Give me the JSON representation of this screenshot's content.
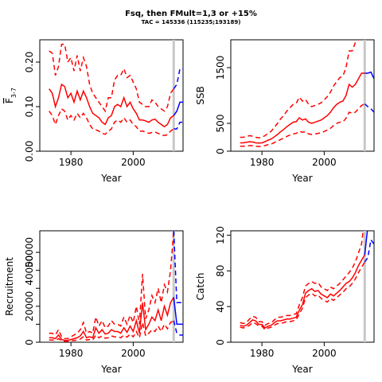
{
  "figure": {
    "title": "Fsq, then FMult=1,3 or +15%",
    "subtitle": "TAC = 145336 (115235;193189)"
  },
  "colors": {
    "historic": "#ff0000",
    "forecast": "#0000ff",
    "vline": "#c8c8c8"
  },
  "chart_data": [
    {
      "id": "fbar",
      "type": "line",
      "xlabel": "Year",
      "ylabel_main": "F",
      "ylabel_sub": "3-7",
      "xlim": [
        1970,
        2016
      ],
      "ylim": [
        0,
        0.25
      ],
      "xticks": [
        1980,
        2000
      ],
      "yticks": [
        0.0,
        0.1,
        0.2
      ],
      "ytick_labels": [
        "0.00",
        "0.10",
        "0.20"
      ],
      "vline_x": 2013,
      "historic": {
        "x": [
          1973,
          1974,
          1975,
          1976,
          1977,
          1978,
          1979,
          1980,
          1981,
          1982,
          1983,
          1984,
          1985,
          1986,
          1987,
          1988,
          1989,
          1990,
          1991,
          1992,
          1993,
          1994,
          1995,
          1996,
          1997,
          1998,
          1999,
          2000,
          2001,
          2002,
          2003,
          2004,
          2005,
          2006,
          2007,
          2008,
          2009,
          2010,
          2011,
          2012,
          2013
        ],
        "median": [
          0.14,
          0.13,
          0.1,
          0.12,
          0.15,
          0.145,
          0.12,
          0.13,
          0.11,
          0.135,
          0.115,
          0.135,
          0.12,
          0.1,
          0.085,
          0.08,
          0.075,
          0.065,
          0.06,
          0.075,
          0.08,
          0.1,
          0.105,
          0.1,
          0.12,
          0.1,
          0.11,
          0.095,
          0.085,
          0.07,
          0.07,
          0.068,
          0.065,
          0.07,
          0.072,
          0.065,
          0.06,
          0.055,
          0.06,
          0.075,
          0.08
        ],
        "upper": [
          0.225,
          0.22,
          0.17,
          0.19,
          0.24,
          0.24,
          0.2,
          0.21,
          0.18,
          0.215,
          0.18,
          0.21,
          0.19,
          0.15,
          0.13,
          0.12,
          0.11,
          0.1,
          0.09,
          0.12,
          0.12,
          0.16,
          0.17,
          0.17,
          0.185,
          0.165,
          0.17,
          0.155,
          0.14,
          0.11,
          0.105,
          0.1,
          0.1,
          0.115,
          0.11,
          0.1,
          0.095,
          0.09,
          0.1,
          0.13,
          0.14
        ],
        "lower": [
          0.09,
          0.08,
          0.06,
          0.08,
          0.095,
          0.09,
          0.07,
          0.08,
          0.07,
          0.085,
          0.075,
          0.085,
          0.075,
          0.06,
          0.05,
          0.048,
          0.045,
          0.04,
          0.038,
          0.045,
          0.05,
          0.065,
          0.07,
          0.065,
          0.075,
          0.065,
          0.07,
          0.06,
          0.055,
          0.045,
          0.045,
          0.043,
          0.04,
          0.042,
          0.043,
          0.04,
          0.037,
          0.035,
          0.037,
          0.045,
          0.05
        ]
      },
      "forecast": {
        "x": [
          2013,
          2014,
          2015,
          2016
        ],
        "median": [
          0.08,
          0.09,
          0.11,
          0.11
        ],
        "upper": [
          0.14,
          0.15,
          0.185,
          0.185
        ],
        "lower": [
          0.05,
          0.05,
          0.065,
          0.065
        ]
      }
    },
    {
      "id": "ssb",
      "type": "line",
      "xlabel": "Year",
      "ylabel_main": "SSB",
      "ylabel_sub": "",
      "xlim": [
        1970,
        2016
      ],
      "ylim": [
        0,
        2000
      ],
      "xticks": [
        1980,
        2000
      ],
      "yticks": [
        0,
        500,
        1500
      ],
      "ytick_labels": [
        "0",
        "500",
        "1500"
      ],
      "vline_x": 2013,
      "historic": {
        "x": [
          1973,
          1974,
          1975,
          1976,
          1977,
          1978,
          1979,
          1980,
          1981,
          1982,
          1983,
          1984,
          1985,
          1986,
          1987,
          1988,
          1989,
          1990,
          1991,
          1992,
          1993,
          1994,
          1995,
          1996,
          1997,
          1998,
          1999,
          2000,
          2001,
          2002,
          2003,
          2004,
          2005,
          2006,
          2007,
          2008,
          2009,
          2010,
          2011,
          2012,
          2013
        ],
        "median": [
          150,
          150,
          160,
          170,
          165,
          150,
          145,
          150,
          170,
          200,
          220,
          260,
          300,
          350,
          390,
          440,
          480,
          520,
          530,
          600,
          560,
          580,
          520,
          500,
          520,
          540,
          560,
          600,
          640,
          700,
          780,
          840,
          880,
          900,
          1000,
          1200,
          1150,
          1200,
          1300,
          1400,
          1400
        ],
        "upper": [
          250,
          250,
          260,
          280,
          270,
          250,
          240,
          250,
          280,
          320,
          360,
          430,
          500,
          580,
          640,
          720,
          780,
          840,
          860,
          970,
          900,
          930,
          840,
          800,
          820,
          840,
          870,
          920,
          980,
          1060,
          1170,
          1250,
          1320,
          1350,
          1500,
          1800,
          1800,
          1950,
          2000,
          2050,
          2100
        ],
        "lower": [
          90,
          90,
          95,
          100,
          100,
          90,
          85,
          90,
          100,
          120,
          130,
          155,
          180,
          210,
          235,
          265,
          290,
          310,
          320,
          360,
          340,
          350,
          310,
          300,
          310,
          320,
          330,
          355,
          380,
          410,
          460,
          500,
          520,
          530,
          590,
          700,
          680,
          700,
          760,
          820,
          850
        ]
      },
      "forecast": {
        "x": [
          2013,
          2014,
          2015,
          2016
        ],
        "median": [
          1400,
          1400,
          1420,
          1300
        ],
        "upper": [
          2100,
          2150,
          2250,
          2000
        ],
        "lower": [
          850,
          800,
          760,
          700
        ]
      }
    },
    {
      "id": "recruitment",
      "type": "line",
      "xlabel": "Year",
      "ylabel_main": "Recruitment",
      "ylabel_sub": "",
      "xlim": [
        1970,
        2016
      ],
      "ylim": [
        0,
        62000
      ],
      "xticks": [
        1980,
        2000
      ],
      "yticks": [
        0,
        10000,
        20000,
        30000,
        40000,
        50000
      ],
      "ytick_labels": [
        "0",
        "",
        "20000",
        "",
        "40000",
        "50000"
      ],
      "vline_x": 2013,
      "historic": {
        "x": [
          1973,
          1974,
          1975,
          1976,
          1977,
          1978,
          1979,
          1980,
          1981,
          1982,
          1983,
          1984,
          1985,
          1986,
          1987,
          1988,
          1989,
          1990,
          1991,
          1992,
          1993,
          1994,
          1995,
          1996,
          1997,
          1998,
          1999,
          2000,
          2001,
          2002,
          2003,
          2004,
          2005,
          2006,
          2007,
          2008,
          2009,
          2010,
          2011,
          2012,
          2013
        ],
        "median": [
          2500,
          2500,
          2000,
          4000,
          1500,
          1000,
          1000,
          1500,
          2000,
          2500,
          3500,
          6000,
          2500,
          3000,
          2500,
          8000,
          5000,
          7000,
          4500,
          5000,
          7000,
          6000,
          6000,
          5000,
          8000,
          5500,
          9000,
          6000,
          12000,
          5000,
          22000,
          7000,
          10000,
          14000,
          12000,
          18000,
          12000,
          20000,
          15000,
          22000,
          25000
        ],
        "upper": [
          5000,
          5000,
          4000,
          7000,
          3000,
          2000,
          2000,
          3000,
          4000,
          5000,
          7000,
          11000,
          5000,
          6000,
          5000,
          14000,
          9000,
          12000,
          8000,
          9000,
          12000,
          10000,
          10000,
          9000,
          14000,
          10000,
          15000,
          11000,
          20000,
          10000,
          38000,
          13000,
          18000,
          26000,
          22000,
          30000,
          22000,
          32000,
          28000,
          40000,
          62000
        ],
        "lower": [
          1200,
          1200,
          1000,
          2000,
          800,
          500,
          500,
          800,
          1000,
          1200,
          1800,
          3000,
          1200,
          1500,
          1200,
          4000,
          2500,
          3500,
          2200,
          2500,
          3500,
          3000,
          3000,
          2500,
          4000,
          2800,
          4500,
          3000,
          6000,
          2500,
          11000,
          3500,
          5000,
          7000,
          6000,
          9000,
          6000,
          10000,
          7500,
          11000,
          12000
        ]
      },
      "forecast": {
        "x": [
          2013,
          2014,
          2015,
          2016
        ],
        "median": [
          25000,
          10000,
          10000,
          10000
        ],
        "upper": [
          62000,
          22000,
          22000,
          22000
        ],
        "lower": [
          12000,
          5000,
          4000,
          4000
        ]
      }
    },
    {
      "id": "catch",
      "type": "line",
      "xlabel": "Year",
      "ylabel_main": "Catch",
      "ylabel_sub": "",
      "xlim": [
        1970,
        2016
      ],
      "ylim": [
        0,
        125
      ],
      "xticks": [
        1980,
        2000
      ],
      "yticks": [
        0,
        40,
        80,
        120
      ],
      "ytick_labels": [
        "0",
        "40",
        "80",
        "120"
      ],
      "vline_x": 2013,
      "historic": {
        "x": [
          1973,
          1974,
          1975,
          1976,
          1977,
          1978,
          1979,
          1980,
          1981,
          1982,
          1983,
          1984,
          1985,
          1986,
          1987,
          1988,
          1989,
          1990,
          1991,
          1992,
          1993,
          1994,
          1995,
          1996,
          1997,
          1998,
          1999,
          2000,
          2001,
          2002,
          2003,
          2004,
          2005,
          2006,
          2007,
          2008,
          2009,
          2010,
          2011,
          2012,
          2013
        ],
        "median": [
          19,
          18,
          19,
          22,
          25,
          24,
          20,
          20,
          16,
          18,
          19,
          22,
          24,
          24,
          25,
          26,
          26,
          27,
          28,
          36,
          42,
          55,
          58,
          60,
          57,
          58,
          54,
          52,
          50,
          54,
          52,
          55,
          58,
          62,
          66,
          68,
          72,
          78,
          86,
          92,
          98
        ],
        "upper": [
          22,
          21,
          22,
          26,
          29,
          28,
          23,
          23,
          19,
          21,
          22,
          25,
          28,
          28,
          29,
          30,
          30,
          31,
          32,
          42,
          50,
          63,
          66,
          68,
          66,
          67,
          62,
          60,
          58,
          62,
          60,
          63,
          66,
          70,
          74,
          78,
          83,
          90,
          100,
          110,
          140
        ],
        "lower": [
          17,
          16,
          17,
          19,
          22,
          21,
          18,
          18,
          14,
          16,
          17,
          19,
          21,
          21,
          22,
          23,
          23,
          24,
          25,
          32,
          38,
          50,
          53,
          55,
          52,
          53,
          49,
          47,
          45,
          49,
          47,
          50,
          53,
          56,
          60,
          62,
          66,
          71,
          78,
          84,
          90
        ]
      },
      "forecast": {
        "x": [
          2013,
          2014,
          2015,
          2016
        ],
        "median": [
          98,
          130,
          150,
          150
        ],
        "upper": [
          140,
          170,
          200,
          200
        ],
        "lower": [
          90,
          95,
          115,
          110
        ]
      }
    }
  ]
}
